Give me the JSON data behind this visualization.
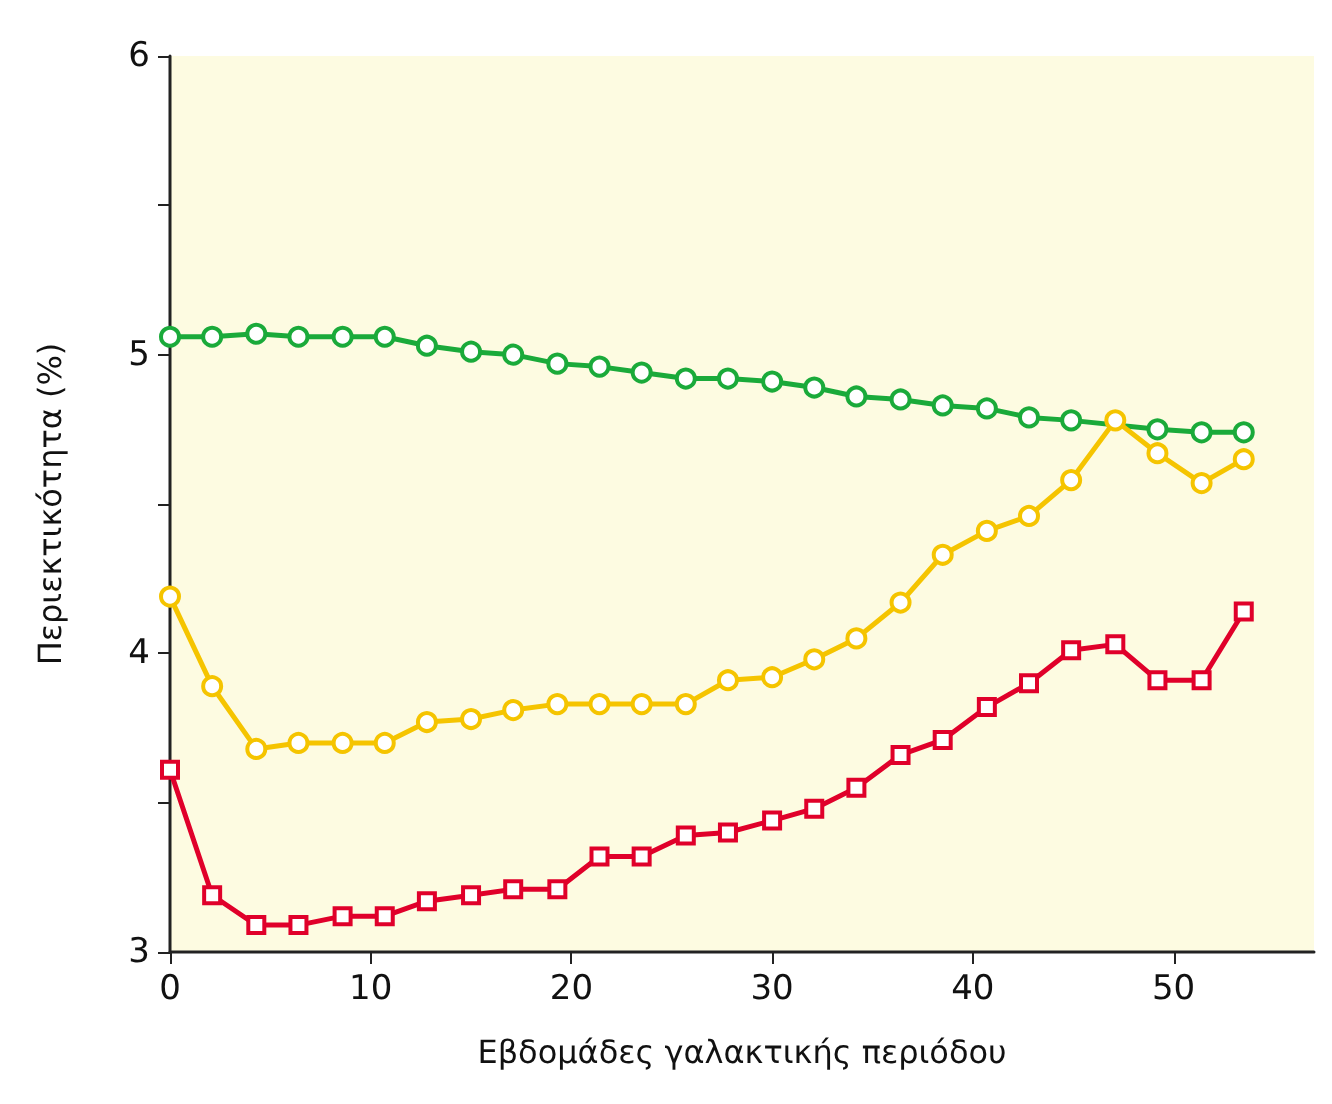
{
  "chart_data": {
    "type": "line",
    "xlabel": "Εβδομάδες γαλακτικής περιόδου",
    "ylabel": "Περιεκτικότητα (%)",
    "x": [
      0,
      2.1,
      4.3,
      6.4,
      8.6,
      10.7,
      12.8,
      15,
      17.1,
      19.3,
      21.4,
      23.5,
      25.7,
      27.8,
      30,
      32.1,
      34.2,
      36.4,
      38.5,
      40.7,
      42.8,
      44.9,
      47.1,
      49.2,
      51.4,
      53.5
    ],
    "xlim": [
      0,
      57
    ],
    "xticks": [
      0,
      10,
      20,
      30,
      40,
      50
    ],
    "ylim": [
      3,
      6
    ],
    "yticks": [
      3,
      {
        "value": 3.5,
        "label": null
      },
      4,
      {
        "value": 4.5,
        "label": null
      },
      5,
      {
        "value": 5.5,
        "label": null
      },
      6
    ],
    "grid": false,
    "line_style": "solid",
    "series": [
      {
        "color": "#1aaa3a",
        "marker": "circle",
        "values": [
          5.06,
          5.06,
          5.07,
          5.06,
          5.06,
          5.06,
          5.03,
          5.01,
          5.0,
          4.97,
          4.96,
          4.94,
          4.92,
          4.92,
          4.91,
          4.89,
          4.86,
          4.85,
          4.83,
          4.82,
          4.79,
          4.78,
          null,
          4.75,
          4.74,
          4.74
        ]
      },
      {
        "color": "#f5c400",
        "marker": "circle",
        "values": [
          4.19,
          3.89,
          3.68,
          3.7,
          3.7,
          3.7,
          3.77,
          3.78,
          3.81,
          3.83,
          3.83,
          3.83,
          3.83,
          3.91,
          3.92,
          3.98,
          4.05,
          4.17,
          4.33,
          4.41,
          4.46,
          4.58,
          4.78,
          4.67,
          4.57,
          4.65
        ]
      },
      {
        "color": "#e0002a",
        "marker": "square",
        "values": [
          3.61,
          3.19,
          3.09,
          3.09,
          3.12,
          3.12,
          3.17,
          3.19,
          3.21,
          3.21,
          3.32,
          3.32,
          3.39,
          3.4,
          3.44,
          3.48,
          3.55,
          3.66,
          3.71,
          3.82,
          3.9,
          4.01,
          4.03,
          3.91,
          3.91,
          4.14
        ]
      }
    ]
  }
}
